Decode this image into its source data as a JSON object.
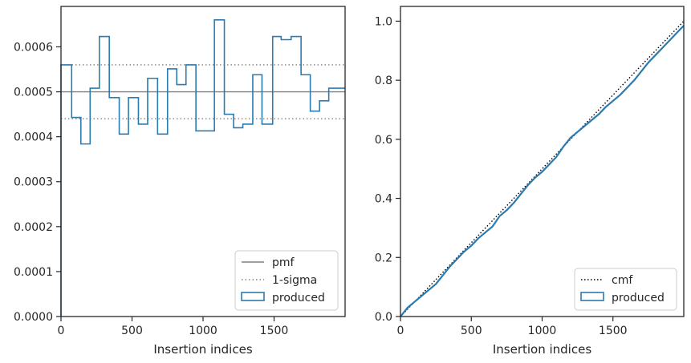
{
  "colors": {
    "produced": "#2b7bb1",
    "pmf": "#808080",
    "sigma": "#808080",
    "cmf": "#000000",
    "axes": "#262626",
    "legend_border": "#cccccc"
  },
  "chart_data": [
    {
      "type": "histogram-step",
      "title": "",
      "xlabel": "Insertion indices",
      "ylabel": "",
      "xlim": [
        0,
        2000
      ],
      "ylim": [
        0,
        0.00069
      ],
      "xticks": [
        0,
        500,
        1000,
        1500
      ],
      "xtick_labels": [
        "0",
        "500",
        "1000",
        "1500"
      ],
      "yticks": [
        0,
        0.0001,
        0.0002,
        0.0003,
        0.0004,
        0.0005,
        0.0006
      ],
      "ytick_labels": [
        "0.0000",
        "0.0001",
        "0.0002",
        "0.0003",
        "0.0004",
        "0.0005",
        "0.0006"
      ],
      "pmf": 0.0005,
      "sigma_upper": 0.00056,
      "sigma_lower": 0.00044,
      "bin_edges": [
        0,
        75,
        140,
        205,
        270,
        340,
        410,
        475,
        545,
        610,
        680,
        750,
        815,
        880,
        950,
        1010,
        1080,
        1150,
        1215,
        1280,
        1350,
        1415,
        1490,
        1550,
        1620,
        1690,
        1755,
        1820,
        1885,
        1950,
        2000
      ],
      "counts": [
        0.00056,
        0.000443,
        0.000384,
        0.000508,
        0.000623,
        0.000487,
        0.000406,
        0.000487,
        0.000428,
        0.00053,
        0.000406,
        0.000551,
        0.000516,
        0.00056,
        0.000413,
        0.000413,
        0.00066,
        0.00045,
        0.00042,
        0.000428,
        0.000538,
        0.000428,
        0.000623,
        0.000616,
        0.000623,
        0.000538,
        0.000457,
        0.00048,
        0.000508,
        0.000508
      ],
      "legend": {
        "location": "lower-right",
        "entries": [
          "pmf",
          "1-sigma",
          "produced"
        ]
      }
    },
    {
      "type": "line",
      "title": "",
      "xlabel": "Insertion indices",
      "ylabel": "",
      "xlim": [
        0,
        2000
      ],
      "ylim": [
        0,
        1.05
      ],
      "xticks": [
        0,
        500,
        1000,
        1500
      ],
      "xtick_labels": [
        "0",
        "500",
        "1000",
        "1500"
      ],
      "yticks": [
        0,
        0.2,
        0.4,
        0.6,
        0.8,
        1.0
      ],
      "ytick_labels": [
        "0.0",
        "0.2",
        "0.4",
        "0.6",
        "0.8",
        "1.0"
      ],
      "series": [
        {
          "name": "cmf",
          "style": "dotted",
          "x": [
            0,
            2000
          ],
          "y": [
            0,
            1
          ]
        },
        {
          "name": "produced",
          "style": "solid",
          "x": [
            0,
            50,
            100,
            150,
            200,
            250,
            300,
            350,
            400,
            450,
            500,
            550,
            600,
            650,
            700,
            750,
            800,
            850,
            900,
            950,
            1000,
            1050,
            1100,
            1150,
            1200,
            1250,
            1300,
            1350,
            1400,
            1450,
            1500,
            1550,
            1600,
            1650,
            1700,
            1750,
            1800,
            1850,
            1900,
            1950,
            2000
          ],
          "y": [
            0,
            0.03,
            0.05,
            0.07,
            0.09,
            0.11,
            0.14,
            0.17,
            0.195,
            0.22,
            0.24,
            0.265,
            0.285,
            0.305,
            0.34,
            0.36,
            0.385,
            0.415,
            0.445,
            0.47,
            0.49,
            0.515,
            0.54,
            0.575,
            0.605,
            0.625,
            0.645,
            0.665,
            0.685,
            0.71,
            0.73,
            0.75,
            0.775,
            0.8,
            0.83,
            0.86,
            0.885,
            0.91,
            0.935,
            0.96,
            0.985
          ]
        }
      ],
      "legend": {
        "location": "lower-right",
        "entries": [
          "cmf",
          "produced"
        ]
      }
    }
  ]
}
